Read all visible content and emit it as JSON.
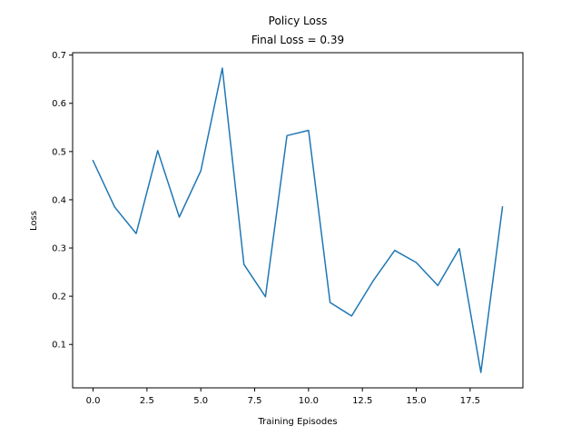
{
  "chart_data": {
    "type": "line",
    "title": "Policy Loss",
    "subtitle": "Final Loss = 0.39",
    "xlabel": "Training Episodes",
    "ylabel": "Loss",
    "x": [
      0,
      1,
      2,
      3,
      4,
      5,
      6,
      7,
      8,
      9,
      10,
      11,
      12,
      13,
      14,
      15,
      16,
      17,
      18,
      19
    ],
    "series": [
      {
        "values": [
          0.481,
          0.385,
          0.33,
          0.502,
          0.364,
          0.46,
          0.673,
          0.266,
          0.199,
          0.533,
          0.544,
          0.187,
          0.159,
          0.232,
          0.295,
          0.27,
          0.222,
          0.299,
          0.042,
          0.385
        ],
        "color": "#1f77b4"
      }
    ],
    "xlim": [
      -0.95,
      19.95
    ],
    "ylim": [
      0.01,
      0.705
    ],
    "xticks": [
      0.0,
      2.5,
      5.0,
      7.5,
      10.0,
      12.5,
      15.0,
      17.5
    ],
    "xtick_labels": [
      "0.0",
      "2.5",
      "5.0",
      "7.5",
      "10.0",
      "12.5",
      "15.0",
      "17.5"
    ],
    "yticks": [
      0.1,
      0.2,
      0.3,
      0.4,
      0.5,
      0.6,
      0.7
    ],
    "ytick_labels": [
      "0.1",
      "0.2",
      "0.3",
      "0.4",
      "0.5",
      "0.6",
      "0.7"
    ],
    "grid": false,
    "legend": false
  }
}
